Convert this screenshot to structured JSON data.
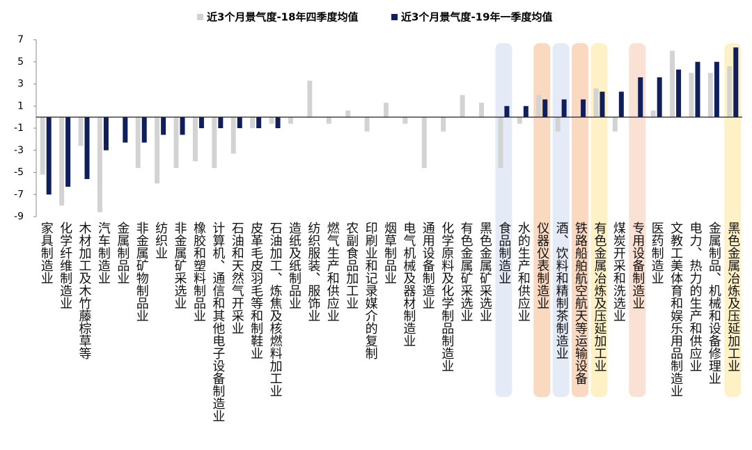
{
  "chart_data": {
    "type": "bar",
    "categories": [
      "家具制造业",
      "化学纤维制造业",
      "木材加工及木竹藤棕草等",
      "汽车制造业",
      "金属制品业",
      "非金属矿物制品业",
      "纺织业",
      "非金属矿采选业",
      "橡胶和塑料制品业",
      "计算机、通信和其他电子设备制造业",
      "石油和天然气开采业",
      "皮革毛皮羽毛等和制鞋业",
      "石油加工、炼焦及核燃料加工业",
      "造纸及纸制品业",
      "纺织服装、服饰业",
      "燃气生产和供应业",
      "农副食品加工业",
      "印刷业和记录媒介的复制",
      "烟草制品业",
      "电气机械及器材制造业",
      "通用设备制造业",
      "化学原料及化学制品制造业",
      "有色金属矿采选业",
      "黑色金属矿采选业",
      "食品制造业",
      "水的生产和供应业",
      "仪器仪表制造业",
      "酒、饮料和精制茶制造业",
      "铁路船舶航空航天等运输设备",
      "有色金属冶炼及压延加工业",
      "煤炭开采和洗选业",
      "专用设备制造业",
      "医药制造业",
      "文教工美体育和娱乐用品制造业",
      "电力、热力的生产和供应业",
      "金属制品、机械和设备修理业",
      "黑色金属冶炼及压延加工业"
    ],
    "series": [
      {
        "name": "近3个月景气度-18年四季度均值",
        "color": "#d3d3d3",
        "values": [
          -5.2,
          -8,
          -2.6,
          -8.6,
          0,
          -4.6,
          -6,
          -4.6,
          -4,
          -4.6,
          -3.3,
          -1,
          -0.6,
          -0.6,
          3.3,
          -0.6,
          0.6,
          -1.3,
          1.3,
          -0.6,
          -4.6,
          -1.3,
          2,
          1.3,
          -4.6,
          -0.6,
          2,
          -1.3,
          0,
          2.6,
          -1.3,
          0,
          0.6,
          6,
          4,
          4,
          4.6
        ]
      },
      {
        "name": "近3个月景气度-19年一季度均值",
        "color": "#0f1f5c",
        "values": [
          -7,
          -6.3,
          -5.6,
          -3,
          -2.3,
          -2.3,
          -1.6,
          -1.6,
          -1,
          -1,
          -1,
          -1,
          -1,
          0,
          0,
          0,
          0,
          0,
          0,
          0,
          0,
          0,
          0,
          0,
          1,
          1,
          1.6,
          1.6,
          1.6,
          2.3,
          2.3,
          3.6,
          3.6,
          4.3,
          5,
          5,
          6.3
        ]
      }
    ],
    "ylim": [
      -9,
      7
    ],
    "yticks": [
      -9,
      -7,
      -5,
      -3,
      -1,
      1,
      3,
      5,
      7
    ]
  }
}
